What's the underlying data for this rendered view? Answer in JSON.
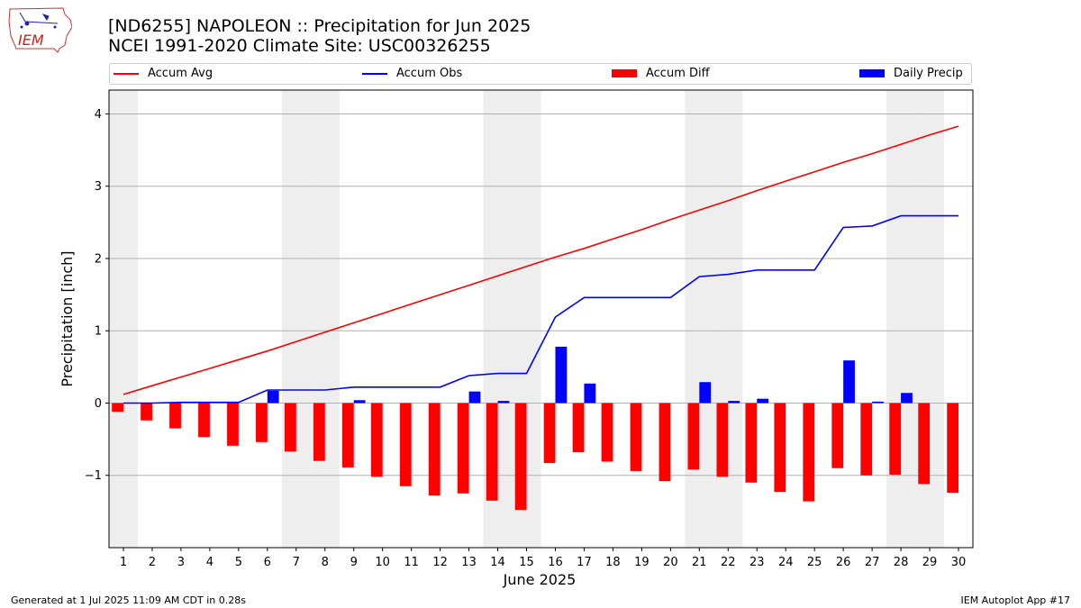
{
  "header": {
    "title_line1": "[ND6255] NAPOLEON :: Precipitation for Jun 2025",
    "title_line2": "NCEI 1991-2020 Climate Site: USC00326255"
  },
  "logo": {
    "text": "IEM",
    "icon": "iowa-map-weather-icon"
  },
  "footer": {
    "generated": "Generated at 1 Jul 2025 11:09 AM CDT in 0.28s",
    "app": "IEM Autoplot App #17"
  },
  "colors": {
    "avg": "#ff0000",
    "obs": "#0000ff",
    "diff": "#ff0000",
    "daily": "#0000ff",
    "weekend_band": "#eeeeee",
    "grid": "#b0b0b0"
  },
  "chart_data": {
    "type": "bar",
    "xlabel": "June 2025",
    "ylabel": "Precipitation [inch]",
    "ylim": [
      -2.0,
      4.33
    ],
    "xlim": [
      0.5,
      30.5
    ],
    "yticks": [
      -1,
      0,
      1,
      2,
      3,
      4
    ],
    "ytick_labels": [
      "−1",
      "0",
      "1",
      "2",
      "3",
      "4"
    ],
    "grid": "horizontal",
    "legend_position": "top",
    "shaded_days": [
      1,
      7,
      8,
      14,
      15,
      21,
      22,
      28,
      29
    ],
    "days": [
      1,
      2,
      3,
      4,
      5,
      6,
      7,
      8,
      9,
      10,
      11,
      12,
      13,
      14,
      15,
      16,
      17,
      18,
      19,
      20,
      21,
      22,
      23,
      24,
      25,
      26,
      27,
      28,
      29,
      30
    ],
    "series": [
      {
        "name": "Accum Avg",
        "kind": "line",
        "values": [
          0.12,
          0.24,
          0.36,
          0.48,
          0.6,
          0.72,
          0.85,
          0.98,
          1.11,
          1.24,
          1.37,
          1.5,
          1.63,
          1.76,
          1.89,
          2.02,
          2.14,
          2.27,
          2.4,
          2.54,
          2.67,
          2.8,
          2.94,
          3.07,
          3.2,
          3.33,
          3.45,
          3.58,
          3.71,
          3.83
        ]
      },
      {
        "name": "Accum Obs",
        "kind": "line",
        "values": [
          0.0,
          0.0,
          0.01,
          0.01,
          0.01,
          0.18,
          0.18,
          0.18,
          0.22,
          0.22,
          0.22,
          0.22,
          0.38,
          0.41,
          0.41,
          1.19,
          1.46,
          1.46,
          1.46,
          1.46,
          1.75,
          1.78,
          1.84,
          1.84,
          1.84,
          2.43,
          2.45,
          2.59,
          2.59,
          2.59
        ]
      },
      {
        "name": "Accum Diff",
        "kind": "bar",
        "values": [
          -0.12,
          -0.24,
          -0.35,
          -0.47,
          -0.59,
          -0.54,
          -0.67,
          -0.8,
          -0.89,
          -1.02,
          -1.15,
          -1.28,
          -1.25,
          -1.35,
          -1.48,
          -0.83,
          -0.68,
          -0.81,
          -0.94,
          -1.08,
          -0.92,
          -1.02,
          -1.1,
          -1.23,
          -1.36,
          -0.9,
          -1.0,
          -0.99,
          -1.12,
          -1.24
        ]
      },
      {
        "name": "Daily Precip",
        "kind": "bar",
        "values": [
          0.0,
          0.0,
          0.01,
          0.0,
          0.0,
          0.17,
          0.0,
          0.0,
          0.04,
          0.0,
          0.0,
          0.0,
          0.16,
          0.03,
          0.0,
          0.78,
          0.27,
          0.0,
          0.0,
          0.0,
          0.29,
          0.03,
          0.06,
          0.0,
          0.0,
          0.59,
          0.02,
          0.14,
          0.0,
          0.0
        ]
      }
    ]
  }
}
